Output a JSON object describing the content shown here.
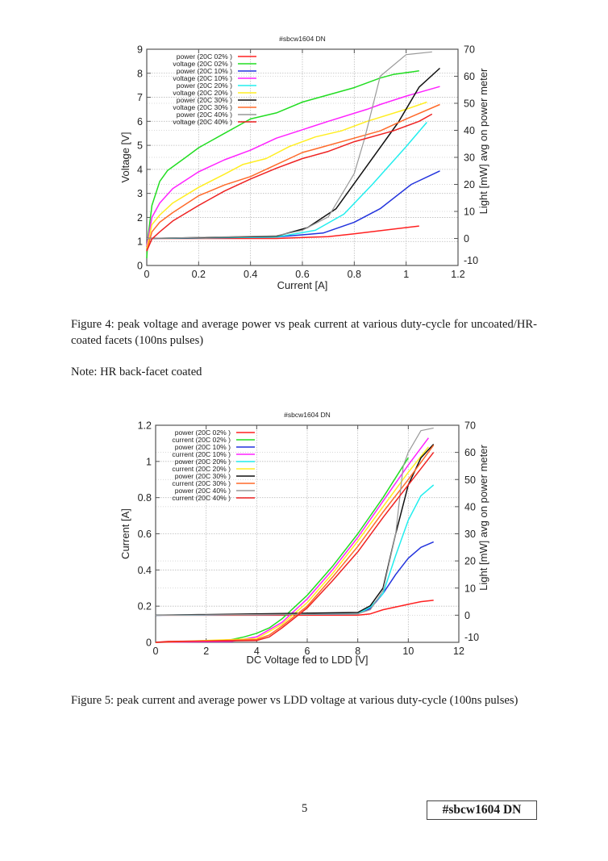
{
  "figure4": {
    "caption": "Figure 4:  peak voltage and average power vs peak current at various duty-cycle for uncoated/HR-coated facets (100ns pulses)"
  },
  "note": "Note: HR back-facet coated",
  "figure5": {
    "caption": "Figure 5: peak current and average power vs LDD voltage at various duty-cycle (100ns pulses)"
  },
  "footer": {
    "page_number": "5",
    "doc_id": "#sbcw1604 DN"
  },
  "chart_data": [
    {
      "type": "line",
      "title": "#sbcw1604 DN",
      "xlabel": "Current [A]",
      "ylabel": "Voltage [V]",
      "y2label": "Light [mW] avg on power meter",
      "xlim": [
        0,
        1.2
      ],
      "ylim": [
        0,
        9
      ],
      "y2lim": [
        -10,
        70
      ],
      "xticks": [
        "0",
        "0.2",
        "0.4",
        "0.6",
        "0.8",
        "1",
        "1.2"
      ],
      "yticks": [
        "0",
        "1",
        "2",
        "3",
        "4",
        "5",
        "6",
        "7",
        "8",
        "9"
      ],
      "y2ticks": [
        "-10",
        "0",
        "10",
        "20",
        "30",
        "40",
        "50",
        "60",
        "70"
      ],
      "grid": true,
      "legend_position": "top-left",
      "series": [
        {
          "name": "power (20C 02% )",
          "axis": "y2",
          "color": "#ff2020",
          "points": [
            [
              0,
              0
            ],
            [
              0.5,
              0
            ],
            [
              0.7,
              0.7
            ],
            [
              0.8,
              1.7
            ],
            [
              1.05,
              4.6
            ]
          ]
        },
        {
          "name": "voltage (20C 02% )",
          "axis": "y",
          "color": "#22dd22",
          "points": [
            [
              0,
              0.3
            ],
            [
              0.005,
              1.2
            ],
            [
              0.02,
              2.5
            ],
            [
              0.05,
              3.5
            ],
            [
              0.08,
              3.95
            ],
            [
              0.15,
              4.5
            ],
            [
              0.2,
              4.9
            ],
            [
              0.3,
              5.5
            ],
            [
              0.4,
              6.1
            ],
            [
              0.5,
              6.35
            ],
            [
              0.6,
              6.8
            ],
            [
              0.8,
              7.4
            ],
            [
              0.9,
              7.8
            ],
            [
              0.95,
              7.95
            ],
            [
              1.05,
              8.1
            ]
          ]
        },
        {
          "name": "power (20C 10% )",
          "axis": "y2",
          "color": "#2233dd",
          "points": [
            [
              0,
              0
            ],
            [
              0.5,
              0.5
            ],
            [
              0.68,
              2
            ],
            [
              0.8,
              6
            ],
            [
              0.9,
              11
            ],
            [
              1.02,
              20
            ],
            [
              1.13,
              25
            ]
          ]
        },
        {
          "name": "voltage (20C 10% )",
          "axis": "y",
          "color": "#ff22ff",
          "points": [
            [
              0,
              0.8
            ],
            [
              0.02,
              2.0
            ],
            [
              0.05,
              2.6
            ],
            [
              0.1,
              3.2
            ],
            [
              0.2,
              3.9
            ],
            [
              0.3,
              4.4
            ],
            [
              0.4,
              4.8
            ],
            [
              0.5,
              5.3
            ],
            [
              0.6,
              5.65
            ],
            [
              0.7,
              6.0
            ],
            [
              0.85,
              6.5
            ],
            [
              0.9,
              6.7
            ],
            [
              1.0,
              7.05
            ],
            [
              1.13,
              7.45
            ]
          ]
        },
        {
          "name": "power (20C 20% )",
          "axis": "y2",
          "color": "#22eeee",
          "points": [
            [
              0,
              0
            ],
            [
              0.5,
              0.5
            ],
            [
              0.65,
              3
            ],
            [
              0.76,
              9
            ],
            [
              0.87,
              20
            ],
            [
              1.0,
              34
            ],
            [
              1.08,
              43
            ]
          ]
        },
        {
          "name": "voltage (20C 20% )",
          "axis": "y",
          "color": "#ffee22",
          "points": [
            [
              0,
              0.7
            ],
            [
              0.02,
              1.7
            ],
            [
              0.05,
              2.1
            ],
            [
              0.1,
              2.6
            ],
            [
              0.2,
              3.25
            ],
            [
              0.3,
              3.8
            ],
            [
              0.37,
              4.2
            ],
            [
              0.46,
              4.45
            ],
            [
              0.55,
              4.95
            ],
            [
              0.65,
              5.35
            ],
            [
              0.75,
              5.6
            ],
            [
              0.85,
              6.0
            ],
            [
              1.0,
              6.5
            ],
            [
              1.08,
              6.8
            ]
          ]
        },
        {
          "name": "power (20C 30% )",
          "axis": "y2",
          "color": "#111111",
          "points": [
            [
              0,
              0
            ],
            [
              0.5,
              0.8
            ],
            [
              0.62,
              4
            ],
            [
              0.73,
              11
            ],
            [
              0.85,
              27
            ],
            [
              0.97,
              43
            ],
            [
              1.05,
              56
            ],
            [
              1.13,
              63
            ]
          ]
        },
        {
          "name": "voltage (20C 30% )",
          "axis": "y",
          "color": "#ff6a2a",
          "points": [
            [
              0,
              0.6
            ],
            [
              0.02,
              1.4
            ],
            [
              0.05,
              1.8
            ],
            [
              0.1,
              2.2
            ],
            [
              0.2,
              2.9
            ],
            [
              0.3,
              3.35
            ],
            [
              0.4,
              3.7
            ],
            [
              0.5,
              4.2
            ],
            [
              0.6,
              4.7
            ],
            [
              0.65,
              4.85
            ],
            [
              0.8,
              5.3
            ],
            [
              0.9,
              5.6
            ],
            [
              1.0,
              6.1
            ],
            [
              1.13,
              6.7
            ]
          ]
        },
        {
          "name": "power (20C 40% )",
          "axis": "y2",
          "color": "#999999",
          "points": [
            [
              0,
              0
            ],
            [
              0.5,
              1
            ],
            [
              0.6,
              3
            ],
            [
              0.7,
              8
            ],
            [
              0.8,
              24
            ],
            [
              0.84,
              37
            ],
            [
              0.9,
              60
            ],
            [
              1.0,
              68
            ],
            [
              1.1,
              69
            ]
          ]
        },
        {
          "name": "voltage (20C 40% )",
          "axis": "y",
          "color": "#ee2222",
          "points": [
            [
              0,
              0.6
            ],
            [
              0.02,
              1.1
            ],
            [
              0.05,
              1.4
            ],
            [
              0.1,
              1.85
            ],
            [
              0.2,
              2.5
            ],
            [
              0.3,
              3.1
            ],
            [
              0.4,
              3.6
            ],
            [
              0.5,
              4.05
            ],
            [
              0.6,
              4.45
            ],
            [
              0.7,
              4.75
            ],
            [
              0.8,
              5.15
            ],
            [
              0.95,
              5.6
            ],
            [
              1.05,
              6.0
            ],
            [
              1.1,
              6.3
            ]
          ]
        }
      ]
    },
    {
      "type": "line",
      "title": "#sbcw1604 DN",
      "xlabel": "DC Voltage fed to LDD [V]",
      "ylabel": "Current [A]",
      "y2label": "Light [mW] avg on power meter",
      "xlim": [
        0,
        12
      ],
      "ylim": [
        0,
        1.2
      ],
      "y2lim": [
        -10,
        70
      ],
      "xticks": [
        "0",
        "2",
        "4",
        "6",
        "8",
        "10",
        "12"
      ],
      "yticks": [
        "0",
        "0.2",
        "0.4",
        "0.6",
        "0.8",
        "1",
        "1.2"
      ],
      "y2ticks": [
        "-10",
        "0",
        "10",
        "20",
        "30",
        "40",
        "50",
        "60",
        "70"
      ],
      "grid": true,
      "legend_position": "top-left",
      "series": [
        {
          "name": "power (20C 02% )",
          "axis": "y2",
          "color": "#ff2020",
          "points": [
            [
              0,
              0
            ],
            [
              8,
              0
            ],
            [
              8.5,
              0.5
            ],
            [
              9,
              2
            ],
            [
              10,
              4
            ],
            [
              10.5,
              5
            ],
            [
              11,
              5.5
            ]
          ]
        },
        {
          "name": "current (20C 02% )",
          "axis": "y",
          "color": "#22dd22",
          "points": [
            [
              0,
              0
            ],
            [
              2,
              0.005
            ],
            [
              3,
              0.015
            ],
            [
              3.5,
              0.03
            ],
            [
              4,
              0.05
            ],
            [
              4.5,
              0.08
            ],
            [
              5,
              0.13
            ],
            [
              6,
              0.26
            ],
            [
              7,
              0.42
            ],
            [
              8,
              0.6
            ],
            [
              9,
              0.8
            ],
            [
              10,
              1.02
            ]
          ]
        },
        {
          "name": "power (20C 10% )",
          "axis": "y2",
          "color": "#2233dd",
          "points": [
            [
              0,
              0
            ],
            [
              8,
              0.5
            ],
            [
              8.5,
              2.5
            ],
            [
              9,
              8
            ],
            [
              9.5,
              15
            ],
            [
              10,
              21
            ],
            [
              10.5,
              25
            ],
            [
              11,
              27
            ]
          ]
        },
        {
          "name": "current (20C 10% )",
          "axis": "y",
          "color": "#ff22ff",
          "points": [
            [
              0,
              0
            ],
            [
              3,
              0.005
            ],
            [
              4,
              0.03
            ],
            [
              5,
              0.11
            ],
            [
              6,
              0.24
            ],
            [
              7,
              0.4
            ],
            [
              8,
              0.58
            ],
            [
              9,
              0.78
            ],
            [
              10,
              0.98
            ],
            [
              10.8,
              1.13
            ]
          ]
        },
        {
          "name": "power (20C 20% )",
          "axis": "y2",
          "color": "#22eeee",
          "points": [
            [
              0,
              0
            ],
            [
              8,
              0.5
            ],
            [
              8.5,
              3
            ],
            [
              9,
              8
            ],
            [
              9.5,
              22
            ],
            [
              10,
              35
            ],
            [
              10.5,
              44
            ],
            [
              11,
              48
            ]
          ]
        },
        {
          "name": "current (20C 20% )",
          "axis": "y",
          "color": "#ffee22",
          "points": [
            [
              0,
              0
            ],
            [
              4,
              0.02
            ],
            [
              5,
              0.1
            ],
            [
              6,
              0.22
            ],
            [
              7,
              0.38
            ],
            [
              8,
              0.56
            ],
            [
              9,
              0.75
            ],
            [
              10,
              0.94
            ],
            [
              10.8,
              1.08
            ]
          ]
        },
        {
          "name": "power (20C 30% )",
          "axis": "y2",
          "color": "#111111",
          "points": [
            [
              0,
              0
            ],
            [
              8,
              1
            ],
            [
              8.5,
              3.5
            ],
            [
              9,
              10
            ],
            [
              9.5,
              30
            ],
            [
              10,
              48
            ],
            [
              10.5,
              58
            ],
            [
              11,
              63
            ]
          ]
        },
        {
          "name": "current (20C 30% )",
          "axis": "y",
          "color": "#ff6a2a",
          "points": [
            [
              0,
              0
            ],
            [
              4,
              0.015
            ],
            [
              4.5,
              0.04
            ],
            [
              5,
              0.09
            ],
            [
              6,
              0.2
            ],
            [
              7,
              0.36
            ],
            [
              8,
              0.53
            ],
            [
              9,
              0.72
            ],
            [
              10,
              0.9
            ],
            [
              11,
              1.09
            ]
          ]
        },
        {
          "name": "power (20C 40% )",
          "axis": "y2",
          "color": "#999999",
          "points": [
            [
              0,
              0
            ],
            [
              8,
              0.5
            ],
            [
              8.5,
              2
            ],
            [
              9,
              9
            ],
            [
              9.5,
              30
            ],
            [
              9.8,
              55
            ],
            [
              10,
              60
            ],
            [
              10.5,
              68
            ],
            [
              11,
              69
            ]
          ]
        },
        {
          "name": "current (20C 40% )",
          "axis": "y",
          "color": "#ee2222",
          "points": [
            [
              0,
              0
            ],
            [
              0.5,
              0.005
            ],
            [
              4,
              0.01
            ],
            [
              4.5,
              0.03
            ],
            [
              5,
              0.08
            ],
            [
              6,
              0.19
            ],
            [
              7,
              0.34
            ],
            [
              8,
              0.5
            ],
            [
              9,
              0.69
            ],
            [
              10,
              0.87
            ],
            [
              11,
              1.05
            ]
          ]
        }
      ]
    }
  ]
}
